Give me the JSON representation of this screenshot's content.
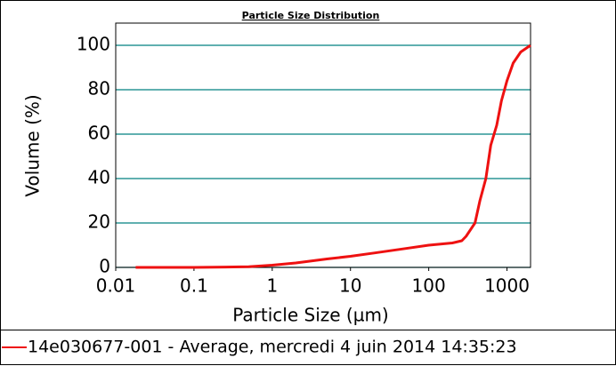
{
  "chart_data": {
    "type": "line",
    "title": "Particle Size Distribution",
    "xlabel": "Particle Size (µm)",
    "ylabel": "Volume (%)",
    "xscale": "log",
    "xlim": [
      0.01,
      2000
    ],
    "ylim": [
      0,
      110
    ],
    "xticks": [
      0.01,
      0.1,
      1,
      10,
      100,
      1000
    ],
    "yticks": [
      0,
      20,
      40,
      60,
      80,
      100
    ],
    "grid": true,
    "grid_color": "#008080",
    "legend": "bottom",
    "x": [
      0.018,
      0.1,
      0.5,
      1,
      2,
      5,
      10,
      20,
      50,
      100,
      200,
      265,
      300,
      390,
      450,
      537,
      620,
      740,
      850,
      1000,
      1200,
      1500,
      2000
    ],
    "series": [
      {
        "name": "14e030677-001 - Average, mercredi 4 juin 2014 14:35:23",
        "color": "#ee1111",
        "values": [
          0,
          0,
          0.3,
          1,
          2,
          3.8,
          5,
          6.5,
          8.5,
          10,
          11,
          12,
          14,
          20,
          30,
          40,
          55,
          64,
          75,
          84,
          92,
          97,
          100
        ]
      }
    ]
  }
}
